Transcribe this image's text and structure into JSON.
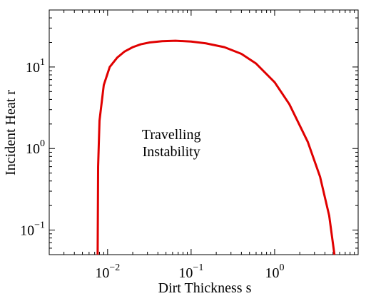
{
  "chart_data": {
    "type": "line",
    "xlabel": "Dirt Thickness s",
    "ylabel": "Incident Heat r",
    "x_scale": "log",
    "y_scale": "log",
    "xlim": [
      0.002,
      10
    ],
    "ylim": [
      0.05,
      50
    ],
    "grid": false,
    "x_ticks": [
      {
        "value": 0.01,
        "base": "10",
        "exp": "−2"
      },
      {
        "value": 0.1,
        "base": "10",
        "exp": "−1"
      },
      {
        "value": 1,
        "base": "10",
        "exp": "0"
      }
    ],
    "y_ticks": [
      {
        "value": 0.1,
        "base": "10",
        "exp": "−1"
      },
      {
        "value": 1,
        "base": "10",
        "exp": "0"
      },
      {
        "value": 10,
        "base": "10",
        "exp": "1"
      }
    ],
    "series": [
      {
        "color": "#e00000",
        "x": [
          0.0076,
          0.0077,
          0.008,
          0.009,
          0.0106,
          0.013,
          0.016,
          0.02,
          0.025,
          0.032,
          0.045,
          0.065,
          0.1,
          0.15,
          0.25,
          0.4,
          0.6,
          1.0,
          1.5,
          2.5,
          3.5,
          4.5,
          5.2
        ],
        "y": [
          0.05,
          0.6,
          2.2,
          6.0,
          10.0,
          13.0,
          15.5,
          17.5,
          19.0,
          20.0,
          20.7,
          21.0,
          20.5,
          19.5,
          17.5,
          14.5,
          11.0,
          6.5,
          3.5,
          1.2,
          0.45,
          0.15,
          0.05
        ]
      }
    ],
    "annotations": [
      {
        "lines": [
          "Travelling",
          "Instability"
        ],
        "x": 0.058,
        "y": 1.3
      }
    ]
  }
}
